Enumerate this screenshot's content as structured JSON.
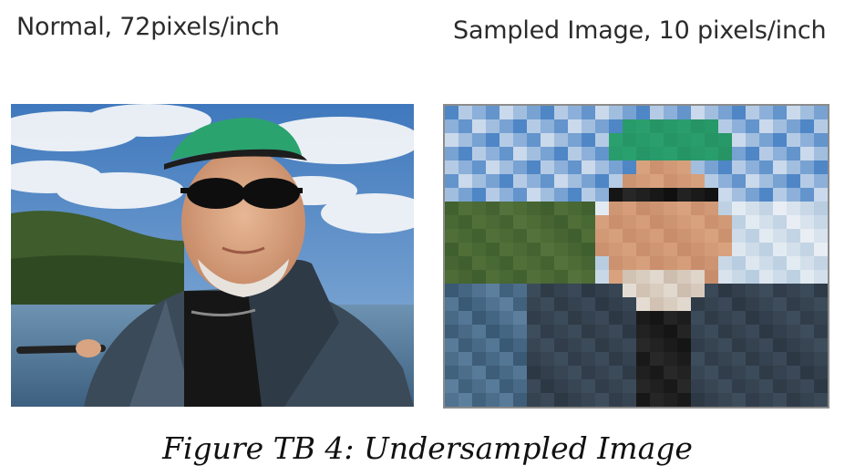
{
  "panels": {
    "left": {
      "label": "Normal, 72pixels/inch"
    },
    "right": {
      "label": "Sampled Image, 10 pixels/inch"
    }
  },
  "caption": "Figure TB 4: Undersampled Image",
  "colors": {
    "sky": "#4f86c6",
    "cloud": "#eef2f6",
    "hill": "#3f5f2e",
    "water": "#5c7f9e",
    "cap": "#2aa06e",
    "skin": "#d9a27e",
    "jacket": "#3e4d5c"
  }
}
